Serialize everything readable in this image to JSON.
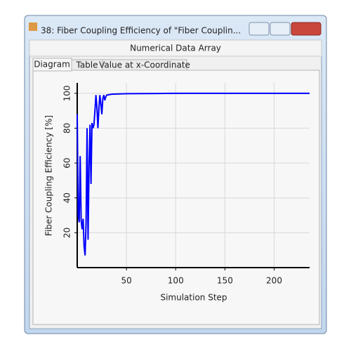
{
  "window": {
    "title": "38: Fiber Coupling Efficiency of \"Fiber Couplin...",
    "subtitle": "Numerical Data Array",
    "tabs": [
      "Diagram",
      "Table",
      "Value at x-Coordinate"
    ]
  },
  "chart_data": {
    "type": "line",
    "xlabel": "Simulation Step",
    "ylabel": "Fiber Coupling Efficiency [%]",
    "x": [
      0,
      1,
      2,
      3,
      4,
      5,
      6,
      7,
      8,
      9,
      10,
      11,
      12,
      13,
      14,
      15,
      16,
      17,
      18,
      19,
      20,
      21,
      22,
      23,
      24,
      25,
      26,
      27,
      28,
      29,
      30,
      35,
      40,
      50,
      80,
      100,
      150,
      200,
      236
    ],
    "values": [
      88,
      30,
      26,
      64,
      27,
      22,
      28,
      12,
      7,
      26,
      80,
      16,
      58,
      82,
      48,
      83,
      80,
      82,
      90,
      99,
      92,
      80,
      91,
      99,
      94,
      88,
      97,
      99,
      96,
      98,
      99,
      99.5,
      99.6,
      99.8,
      99.9,
      100,
      100,
      100,
      100
    ],
    "color": "#0000ff",
    "xlim": [
      0,
      236
    ],
    "ylim": [
      0,
      106
    ],
    "xticks": [
      50,
      100,
      150,
      200
    ],
    "yticks": [
      20,
      40,
      60,
      80,
      100
    ],
    "grid": true
  }
}
